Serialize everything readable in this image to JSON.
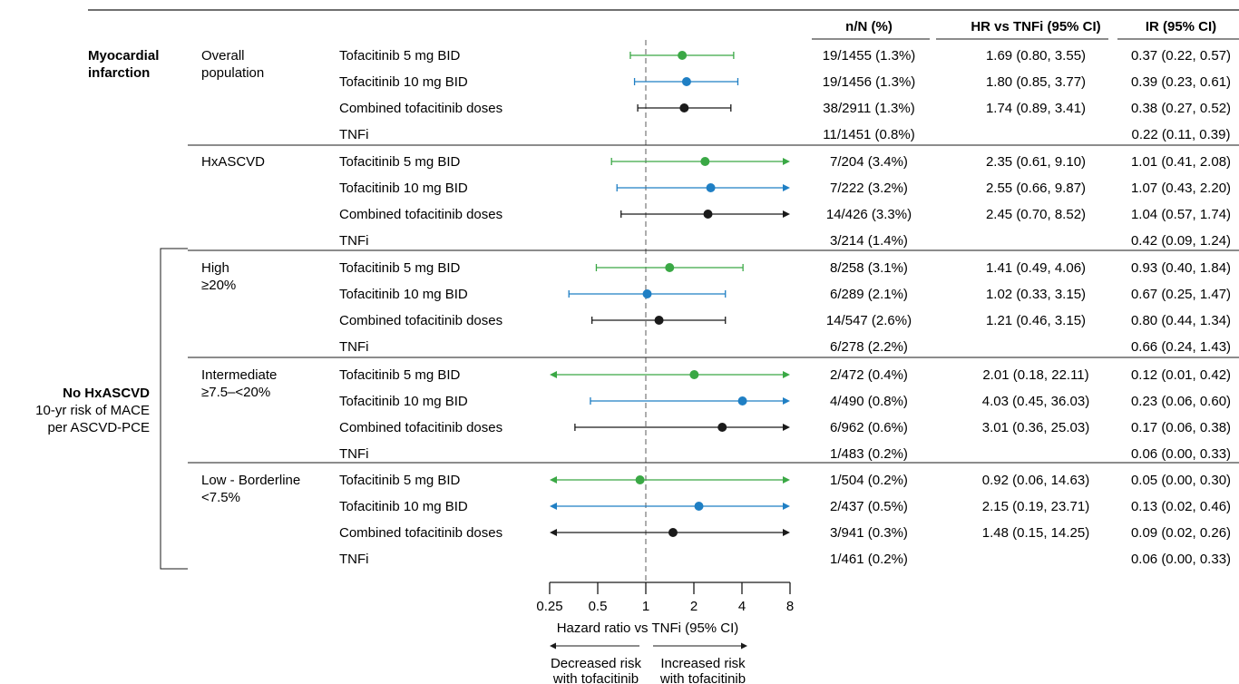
{
  "chart_data": {
    "type": "forest",
    "scale": "log2",
    "xlim": [
      0.25,
      8
    ],
    "reference_line": 1,
    "xticks": [
      "0.25",
      "0.5",
      "1",
      "2",
      "4",
      "8"
    ],
    "xlabel": "Hazard ratio vs TNFi (95% CI)",
    "direction_left": [
      "Decreased risk",
      "with tofacitinib"
    ],
    "direction_right": [
      "Increased risk",
      "with tofacitinib"
    ],
    "columns": [
      "n/N (%)",
      "HR vs TNFi (95% CI)",
      "IR (95% CI)"
    ],
    "outcome_label": [
      "Myocardial",
      "infarction"
    ],
    "bracket_label": [
      "No HxASCVD",
      "10-yr risk of MACE",
      "per ASCVD-PCE"
    ],
    "series_colors": {
      "Tofacitinib 5 mg BID": "#3aa845",
      "Tofacitinib 10 mg BID": "#1f7fc4",
      "Combined tofacitinib doses": "#1a1a1a"
    },
    "groups": [
      {
        "label": [
          "Overall",
          "population"
        ],
        "rows": [
          {
            "treatment": "Tofacitinib 5 mg BID",
            "hr": 1.69,
            "lo": 0.8,
            "hi": 3.55,
            "n": "19/1455 (1.3%)",
            "hr_text": "1.69 (0.80, 3.55)",
            "ir": "0.37 (0.22, 0.57)"
          },
          {
            "treatment": "Tofacitinib 10 mg BID",
            "hr": 1.8,
            "lo": 0.85,
            "hi": 3.77,
            "n": "19/1456 (1.3%)",
            "hr_text": "1.80 (0.85, 3.77)",
            "ir": "0.39 (0.23, 0.61)"
          },
          {
            "treatment": "Combined tofacitinib doses",
            "hr": 1.74,
            "lo": 0.89,
            "hi": 3.41,
            "n": "38/2911 (1.3%)",
            "hr_text": "1.74 (0.89, 3.41)",
            "ir": "0.38 (0.27, 0.52)"
          },
          {
            "treatment": "TNFi",
            "n": "11/1451 (0.8%)",
            "hr_text": "",
            "ir": "0.22 (0.11, 0.39)"
          }
        ]
      },
      {
        "label": [
          "HxASCVD"
        ],
        "rows": [
          {
            "treatment": "Tofacitinib 5 mg BID",
            "hr": 2.35,
            "lo": 0.61,
            "hi": 9.1,
            "n": "7/204 (3.4%)",
            "hr_text": "2.35 (0.61, 9.10)",
            "ir": "1.01 (0.41, 2.08)"
          },
          {
            "treatment": "Tofacitinib 10 mg BID",
            "hr": 2.55,
            "lo": 0.66,
            "hi": 9.87,
            "n": "7/222 (3.2%)",
            "hr_text": "2.55 (0.66, 9.87)",
            "ir": "1.07 (0.43, 2.20)"
          },
          {
            "treatment": "Combined tofacitinib doses",
            "hr": 2.45,
            "lo": 0.7,
            "hi": 8.52,
            "n": "14/426 (3.3%)",
            "hr_text": "2.45 (0.70, 8.52)",
            "ir": "1.04 (0.57, 1.74)"
          },
          {
            "treatment": "TNFi",
            "n": "3/214 (1.4%)",
            "hr_text": "",
            "ir": "0.42 (0.09, 1.24)"
          }
        ]
      },
      {
        "label": [
          "High",
          "≥20%"
        ],
        "rows": [
          {
            "treatment": "Tofacitinib 5 mg BID",
            "hr": 1.41,
            "lo": 0.49,
            "hi": 4.06,
            "n": "8/258 (3.1%)",
            "hr_text": "1.41 (0.49, 4.06)",
            "ir": "0.93 (0.40, 1.84)"
          },
          {
            "treatment": "Tofacitinib 10 mg BID",
            "hr": 1.02,
            "lo": 0.33,
            "hi": 3.15,
            "n": "6/289 (2.1%)",
            "hr_text": "1.02 (0.33, 3.15)",
            "ir": "0.67 (0.25, 1.47)"
          },
          {
            "treatment": "Combined tofacitinib doses",
            "hr": 1.21,
            "lo": 0.46,
            "hi": 3.15,
            "n": "14/547 (2.6%)",
            "hr_text": "1.21 (0.46, 3.15)",
            "ir": "0.80 (0.44, 1.34)"
          },
          {
            "treatment": "TNFi",
            "n": "6/278 (2.2%)",
            "hr_text": "",
            "ir": "0.66 (0.24, 1.43)"
          }
        ]
      },
      {
        "label": [
          "Intermediate",
          "≥7.5–<20%"
        ],
        "rows": [
          {
            "treatment": "Tofacitinib 5 mg BID",
            "hr": 2.01,
            "lo": 0.18,
            "hi": 22.11,
            "n": "2/472 (0.4%)",
            "hr_text": "2.01 (0.18, 22.11)",
            "ir": "0.12 (0.01, 0.42)"
          },
          {
            "treatment": "Tofacitinib 10 mg BID",
            "hr": 4.03,
            "lo": 0.45,
            "hi": 36.03,
            "n": "4/490 (0.8%)",
            "hr_text": "4.03 (0.45, 36.03)",
            "ir": "0.23 (0.06, 0.60)"
          },
          {
            "treatment": "Combined tofacitinib doses",
            "hr": 3.01,
            "lo": 0.36,
            "hi": 25.03,
            "n": "6/962 (0.6%)",
            "hr_text": "3.01 (0.36, 25.03)",
            "ir": "0.17 (0.06, 0.38)"
          },
          {
            "treatment": "TNFi",
            "n": "1/483 (0.2%)",
            "hr_text": "",
            "ir": "0.06 (0.00, 0.33)"
          }
        ]
      },
      {
        "label": [
          "Low - Borderline",
          "<7.5%"
        ],
        "rows": [
          {
            "treatment": "Tofacitinib 5 mg BID",
            "hr": 0.92,
            "lo": 0.06,
            "hi": 14.63,
            "n": "1/504 (0.2%)",
            "hr_text": "0.92 (0.06, 14.63)",
            "ir": "0.05 (0.00, 0.30)"
          },
          {
            "treatment": "Tofacitinib 10 mg BID",
            "hr": 2.15,
            "lo": 0.19,
            "hi": 23.71,
            "n": "2/437 (0.5%)",
            "hr_text": "2.15 (0.19, 23.71)",
            "ir": "0.13 (0.02, 0.46)"
          },
          {
            "treatment": "Combined tofacitinib doses",
            "hr": 1.48,
            "lo": 0.15,
            "hi": 14.25,
            "n": "3/941 (0.3%)",
            "hr_text": "1.48 (0.15, 14.25)",
            "ir": "0.09 (0.02, 0.26)"
          },
          {
            "treatment": "TNFi",
            "n": "1/461 (0.2%)",
            "hr_text": "",
            "ir": "0.06 (0.00, 0.33)"
          }
        ]
      }
    ]
  }
}
